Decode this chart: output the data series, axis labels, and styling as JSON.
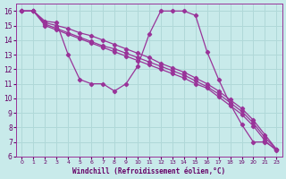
{
  "title": "Windchill (Refroidissement éolien,°C)",
  "bg_color": "#c8eaea",
  "grid_color": "#b0d8d8",
  "line_color": "#993399",
  "xlim": [
    -0.5,
    22.5
  ],
  "ylim": [
    6,
    16.5
  ],
  "xtick_positions": [
    0,
    1,
    2,
    3,
    4,
    5,
    6,
    7,
    8,
    9,
    10,
    11,
    12,
    13,
    14,
    15,
    16,
    17,
    18,
    19,
    20,
    21,
    22
  ],
  "xtick_labels": [
    "0",
    "1",
    "2",
    "3",
    "4",
    "5",
    "6",
    "7",
    "8",
    "9",
    "10",
    "11",
    "12",
    "13",
    "14",
    "15",
    "16",
    "17",
    "18",
    "19",
    "20",
    "21",
    "23"
  ],
  "yticks": [
    6,
    7,
    8,
    9,
    10,
    11,
    12,
    13,
    14,
    15,
    16
  ],
  "series_wavy": {
    "x": [
      0,
      1,
      2,
      3,
      4,
      5,
      6,
      7,
      8,
      9,
      10,
      11,
      12,
      13,
      14,
      15,
      16,
      17,
      18,
      19,
      20,
      21,
      22
    ],
    "y": [
      16,
      16,
      15.3,
      15.2,
      13.0,
      11.3,
      11.0,
      11.0,
      10.5,
      11.0,
      12.2,
      14.4,
      16.0,
      16.0,
      16.0,
      15.7,
      13.2,
      11.3,
      9.6,
      8.2,
      7.0,
      7.0,
      6.5
    ]
  },
  "series_linear": [
    {
      "x": [
        0,
        1,
        2,
        3,
        4,
        5,
        6,
        7,
        8,
        9,
        10,
        11,
        12,
        13,
        14,
        15,
        16,
        17,
        18,
        19,
        20,
        21,
        22
      ],
      "y": [
        16,
        16,
        15.2,
        15.0,
        14.8,
        14.5,
        14.3,
        14.0,
        13.7,
        13.4,
        13.1,
        12.8,
        12.4,
        12.1,
        11.8,
        11.4,
        11.0,
        10.5,
        9.9,
        9.3,
        8.5,
        7.5,
        6.5
      ]
    },
    {
      "x": [
        0,
        1,
        2,
        3,
        4,
        5,
        6,
        7,
        8,
        9,
        10,
        11,
        12,
        13,
        14,
        15,
        16,
        17,
        18,
        19,
        20,
        21,
        22
      ],
      "y": [
        16,
        16,
        15.1,
        14.8,
        14.5,
        14.2,
        13.9,
        13.6,
        13.4,
        13.1,
        12.8,
        12.5,
        12.2,
        11.9,
        11.6,
        11.2,
        10.8,
        10.3,
        9.7,
        9.1,
        8.3,
        7.3,
        6.5
      ]
    },
    {
      "x": [
        0,
        1,
        2,
        3,
        4,
        5,
        6,
        7,
        8,
        9,
        10,
        11,
        12,
        13,
        14,
        15,
        16,
        17,
        18,
        19,
        20,
        21,
        22
      ],
      "y": [
        16,
        16,
        15.0,
        14.7,
        14.4,
        14.1,
        13.8,
        13.5,
        13.2,
        12.9,
        12.6,
        12.3,
        12.0,
        11.7,
        11.4,
        11.0,
        10.7,
        10.1,
        9.5,
        8.9,
        8.1,
        7.1,
        6.4
      ]
    }
  ]
}
